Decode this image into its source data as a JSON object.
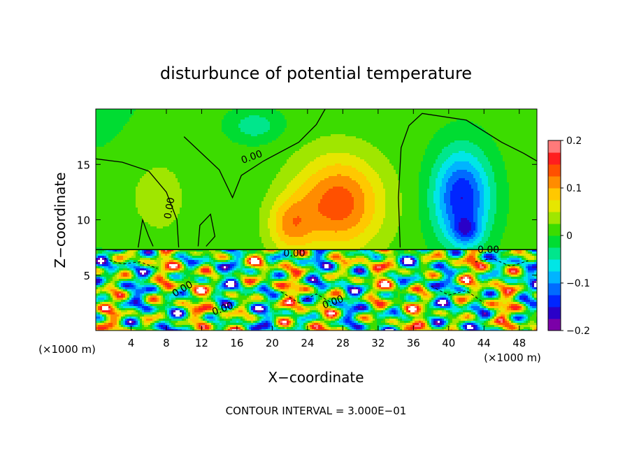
{
  "chart_data": {
    "type": "heatmap",
    "title": "disturbunce of potential temperature",
    "xlabel": "X−coordinate",
    "ylabel": "Z−coordinate",
    "x_unit_left": "(×1000 m)",
    "x_unit_right": "(×1000 m)",
    "footer": "CONTOUR INTERVAL = 3.000E−01",
    "xlim": [
      0,
      50
    ],
    "ylim": [
      0,
      20
    ],
    "x_ticks": [
      "4",
      "8",
      "12",
      "16",
      "20",
      "24",
      "28",
      "32",
      "36",
      "40",
      "44",
      "48"
    ],
    "x_tick_values": [
      4,
      8,
      12,
      16,
      20,
      24,
      28,
      32,
      36,
      40,
      44,
      48
    ],
    "y_ticks": [
      "5",
      "10",
      "15"
    ],
    "y_tick_values": [
      5,
      10,
      15
    ],
    "colorbar": {
      "range": [
        -0.2,
        0.2
      ],
      "ticks": [
        "0.2",
        "0.1",
        "0",
        "−0.1",
        "−0.2"
      ],
      "tick_values": [
        0.2,
        0.1,
        0,
        -0.1,
        -0.2
      ],
      "colors": [
        "#7b00a8",
        "#2a00c8",
        "#0026ff",
        "#006bff",
        "#00b4ff",
        "#00e6e6",
        "#00e68c",
        "#00dc32",
        "#3cdc00",
        "#a0e600",
        "#e6e600",
        "#ffc800",
        "#ff8c00",
        "#ff5000",
        "#ff1e1e",
        "#ff7a7a"
      ]
    },
    "contour_labels": [
      "0.00",
      "0.00",
      "0.00",
      "0.00",
      "0.00",
      "0.00",
      "0.00"
    ],
    "upper_field": {
      "description": "upper layer z > 7.3",
      "blobs": [
        {
          "x": 27.5,
          "z": 11.5,
          "value": 0.13,
          "sx": 5.0,
          "sz": 4.2
        },
        {
          "x": 22.0,
          "z": 9.5,
          "value": 0.08,
          "sx": 2.5,
          "sz": 2.5
        },
        {
          "x": 41.5,
          "z": 12.0,
          "value": -0.16,
          "sx": 3.2,
          "sz": 4.2
        },
        {
          "x": 42.0,
          "z": 9.0,
          "value": -0.08,
          "sx": 1.5,
          "sz": 1.2
        },
        {
          "x": 18.0,
          "z": 18.5,
          "value": -0.05,
          "sx": 3.0,
          "sz": 1.5
        },
        {
          "x": 6.0,
          "z": 12.0,
          "value": 0.03,
          "sx": 5.0,
          "sz": 5.0
        }
      ],
      "background": 0.01
    },
    "lower_field": {
      "description": "lower turbulent layer z < 7.3"
    }
  }
}
